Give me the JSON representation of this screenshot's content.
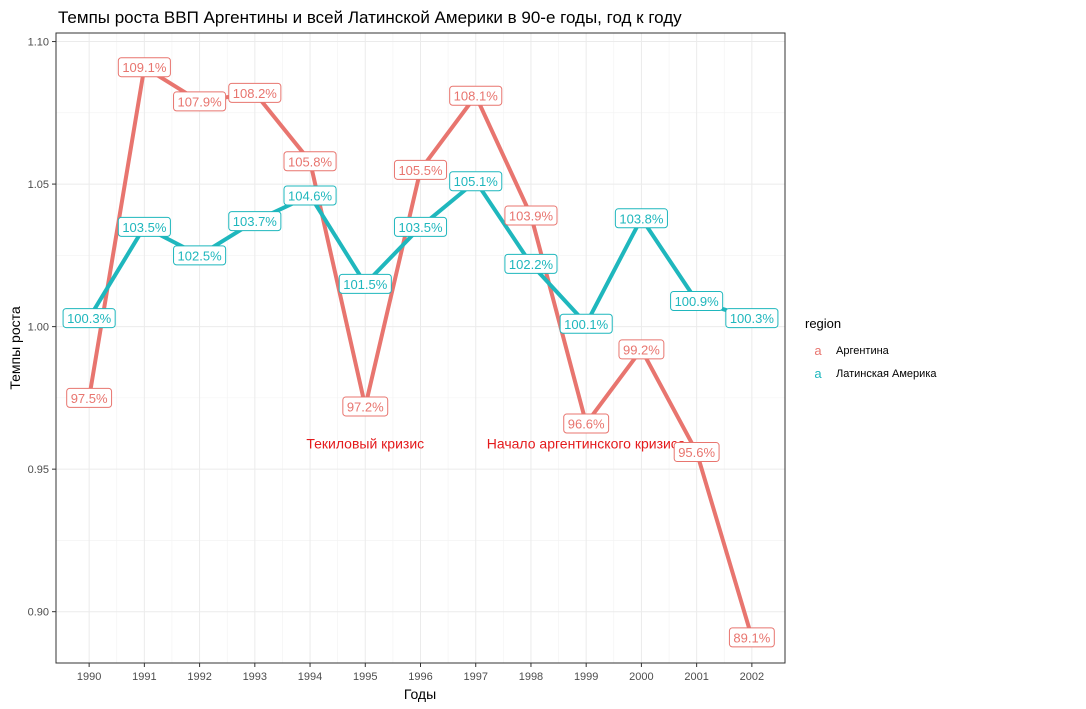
{
  "chart_data": {
    "type": "line",
    "title": "Темпы роста ВВП Аргентины и всей Латинской Америки  в 90-е годы, год к году",
    "xlabel": "Годы",
    "ylabel": "Темпы роста",
    "x": [
      1990,
      1991,
      1992,
      1993,
      1994,
      1995,
      1996,
      1997,
      1998,
      1999,
      2000,
      2001,
      2002
    ],
    "x_tick_labels": [
      "1990",
      "1991",
      "1992",
      "1993",
      "1994",
      "1995",
      "1996",
      "1997",
      "1998",
      "1999",
      "2000",
      "2001",
      "2002"
    ],
    "y_tick_values": [
      0.9,
      0.95,
      1.0,
      1.05,
      1.1
    ],
    "y_tick_labels": [
      "0.90",
      "0.95",
      "1.00",
      "1.05",
      "1.10"
    ],
    "xlim": [
      1989.4,
      2002.6
    ],
    "ylim": [
      0.882,
      1.103
    ],
    "grid": true,
    "legend_placement": "right",
    "legend_title": "region",
    "legend_key_glyph": "a",
    "series": [
      {
        "name": "Аргентина",
        "color": "#e8756f",
        "values": [
          0.975,
          1.091,
          1.079,
          1.082,
          1.058,
          0.972,
          1.055,
          1.081,
          1.039,
          0.966,
          0.992,
          0.956,
          0.891
        ],
        "labels": [
          "97.5%",
          "109.1%",
          "107.9%",
          "108.2%",
          "105.8%",
          "97.2%",
          "105.5%",
          "108.1%",
          "103.9%",
          "96.6%",
          "99.2%",
          "95.6%",
          "89.1%"
        ]
      },
      {
        "name": "Латинская Америка",
        "color": "#1fb7bd",
        "values": [
          1.003,
          1.035,
          1.025,
          1.037,
          1.046,
          1.015,
          1.035,
          1.051,
          1.022,
          1.001,
          1.038,
          1.009,
          1.003
        ],
        "labels": [
          "100.3%",
          "103.5%",
          "102.5%",
          "103.7%",
          "104.6%",
          "101.5%",
          "103.5%",
          "105.1%",
          "102.2%",
          "100.1%",
          "103.8%",
          "100.9%",
          "100.3%"
        ]
      }
    ],
    "annotations": [
      {
        "text": "Текиловый кризис",
        "x": 1995,
        "y": 0.959
      },
      {
        "text": "Начало аргентинского кризиса",
        "x": 1999,
        "y": 0.959
      }
    ]
  }
}
